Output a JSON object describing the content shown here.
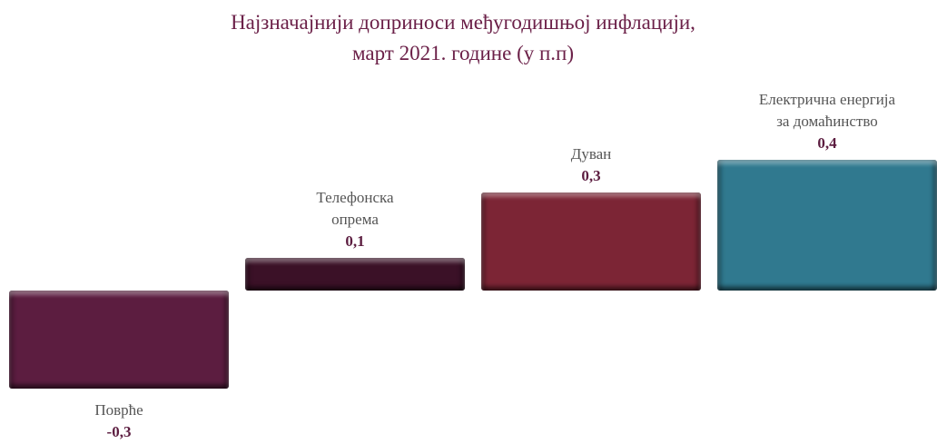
{
  "chart_data": {
    "type": "bar",
    "title": "Најзначајнији доприноси међугодишњој инфлацији,\nмарт 2021. године (у п.п)",
    "categories": [
      "Поврће",
      "Телефонска\nопрема",
      "Дуван",
      "Електрична енергија\nза домаћинство"
    ],
    "values": [
      -0.3,
      0.1,
      0.3,
      0.4
    ],
    "value_labels": [
      "-0,3",
      "0,1",
      "0,3",
      "0,4"
    ],
    "colors": [
      "#5c1d40",
      "#3b1127",
      "#7c2535",
      "#30798f"
    ]
  }
}
